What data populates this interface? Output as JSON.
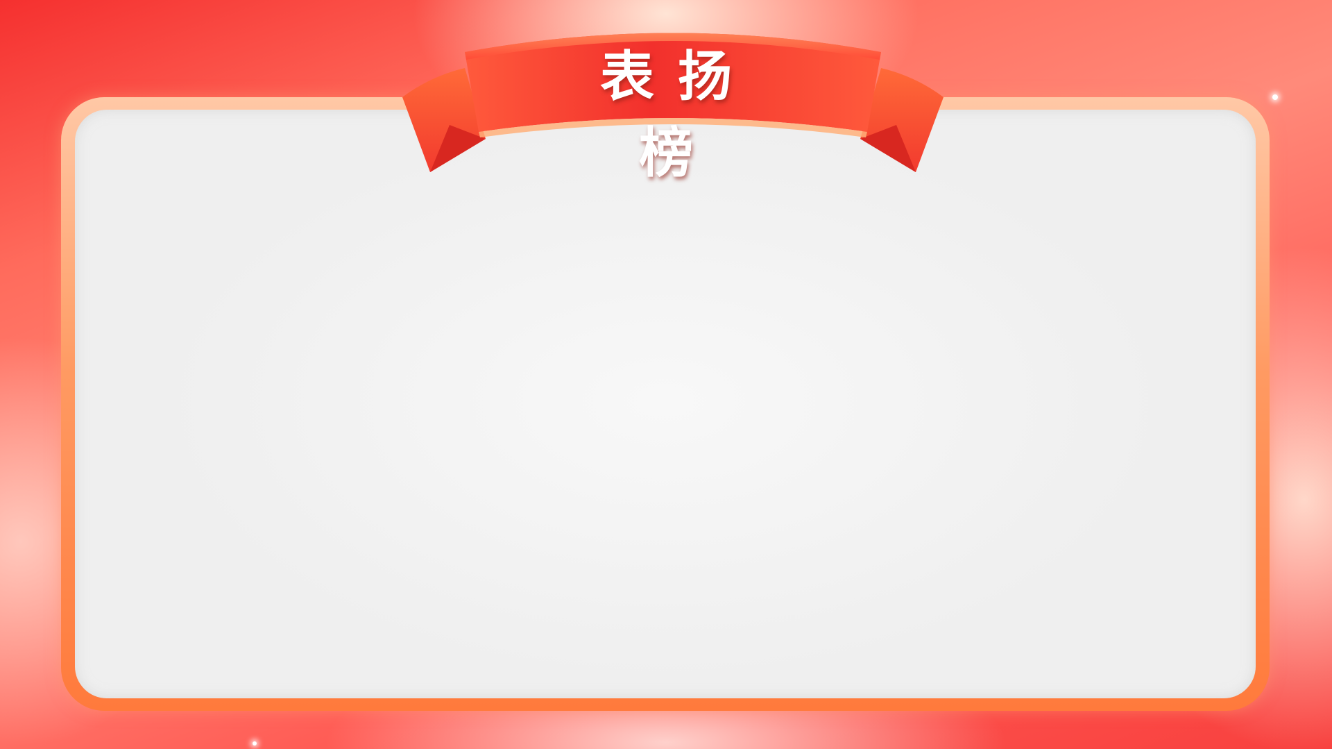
{
  "title": "表扬榜",
  "colors": {
    "background": "#f5302f",
    "frame_border": "#ff7a3c",
    "panel": "#f2f2f2",
    "ribbon": "#f23b32",
    "title_text": "#ffffff"
  },
  "icons": [
    "ribbon-banner-icon",
    "sparkle-icon"
  ]
}
